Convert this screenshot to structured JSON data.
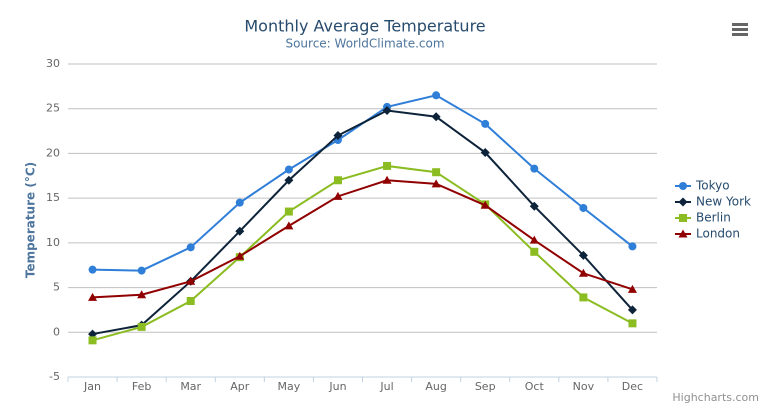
{
  "chart_data": {
    "type": "line",
    "title": "Monthly Average Temperature",
    "subtitle": "Source: WorldClimate.com",
    "y_axis_label": "Temperature (°C)",
    "credits": "Highcharts.com",
    "categories": [
      "Jan",
      "Feb",
      "Mar",
      "Apr",
      "May",
      "Jun",
      "Jul",
      "Aug",
      "Sep",
      "Oct",
      "Nov",
      "Dec"
    ],
    "ylim": [
      -5,
      30
    ],
    "yticks": [
      -5,
      0,
      5,
      10,
      15,
      20,
      25,
      30
    ],
    "grid": true,
    "legend": "right",
    "series": [
      {
        "name": "Tokyo",
        "color": "#2f7ed8",
        "marker": "circle",
        "values": [
          7.0,
          6.9,
          9.5,
          14.5,
          18.2,
          21.5,
          25.2,
          26.5,
          23.3,
          18.3,
          13.9,
          9.6
        ]
      },
      {
        "name": "New York",
        "color": "#0d233a",
        "marker": "diamond",
        "values": [
          -0.2,
          0.8,
          5.7,
          11.3,
          17.0,
          22.0,
          24.8,
          24.1,
          20.1,
          14.1,
          8.6,
          2.5
        ]
      },
      {
        "name": "Berlin",
        "color": "#8bbc21",
        "marker": "square",
        "values": [
          -0.9,
          0.6,
          3.5,
          8.4,
          13.5,
          17.0,
          18.6,
          17.9,
          14.3,
          9.0,
          3.9,
          1.0
        ]
      },
      {
        "name": "London",
        "color": "#910000",
        "marker": "triangle",
        "values": [
          3.9,
          4.2,
          5.7,
          8.5,
          11.9,
          15.2,
          17.0,
          16.6,
          14.2,
          10.3,
          6.6,
          4.8
        ]
      }
    ]
  }
}
